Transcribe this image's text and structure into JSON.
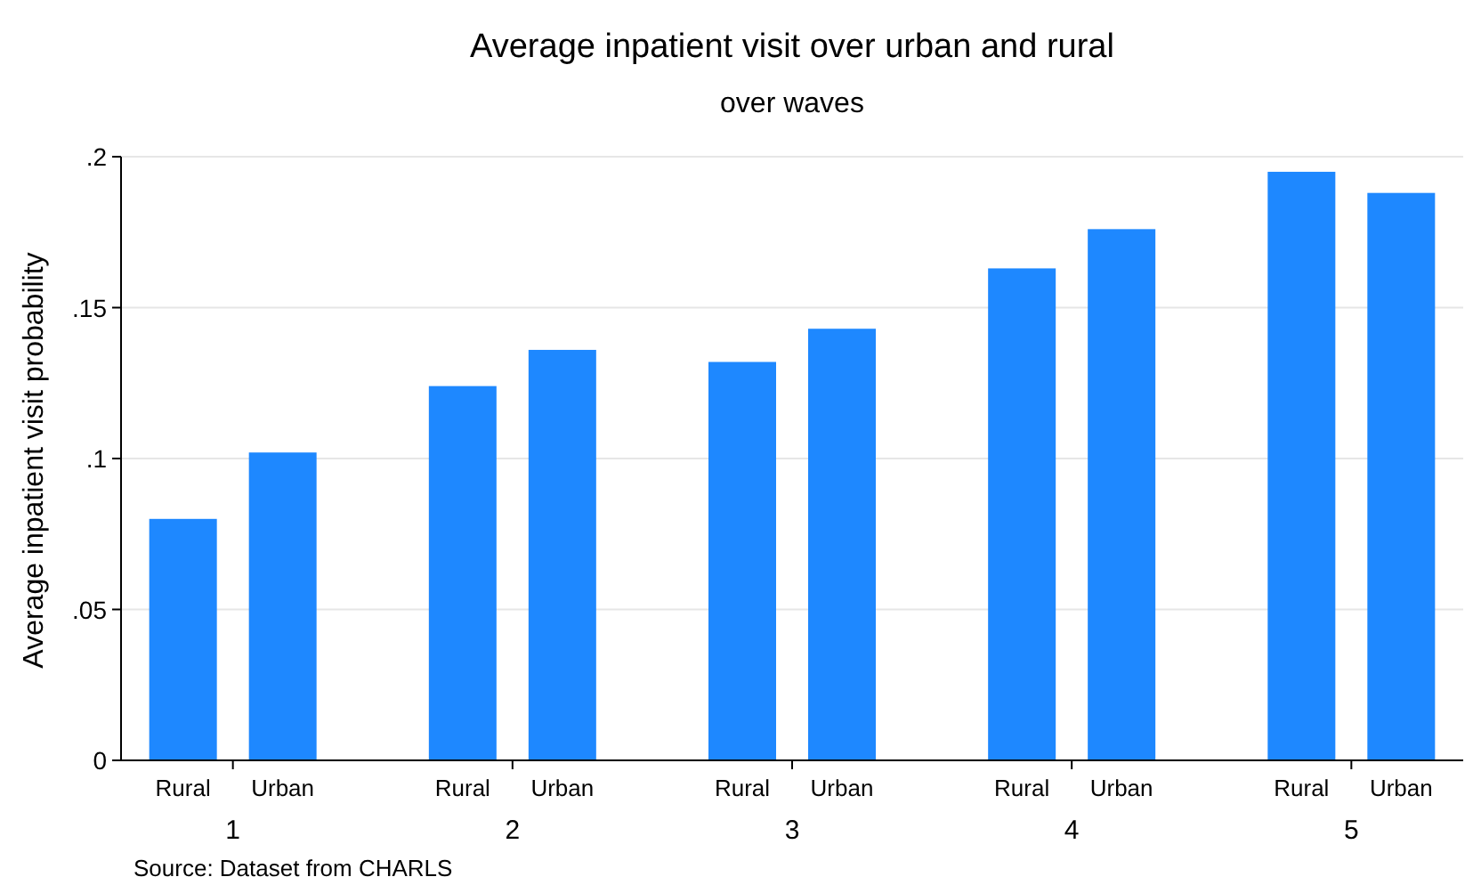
{
  "chart_data": {
    "type": "bar",
    "title": "Average inpatient visit over urban and rural",
    "subtitle": "over waves",
    "ylabel": "Average inpatient visit probability",
    "categories": [
      "1",
      "2",
      "3",
      "4",
      "5"
    ],
    "series": [
      {
        "name": "Rural",
        "color": "#1e88ff",
        "values": [
          0.08,
          0.124,
          0.132,
          0.163,
          0.195
        ]
      },
      {
        "name": "Urban",
        "color": "#1e88ff",
        "values": [
          0.102,
          0.136,
          0.143,
          0.176,
          0.188
        ]
      }
    ],
    "ylim": [
      0,
      0.2
    ],
    "yticks": [
      {
        "value": 0,
        "label": "0"
      },
      {
        "value": 0.05,
        "label": ".05"
      },
      {
        "value": 0.1,
        "label": ".1"
      },
      {
        "value": 0.15,
        "label": ".15"
      },
      {
        "value": 0.2,
        "label": ".2"
      }
    ],
    "grid": "y",
    "annotations": [
      "Source: Dataset from CHARLS"
    ]
  }
}
